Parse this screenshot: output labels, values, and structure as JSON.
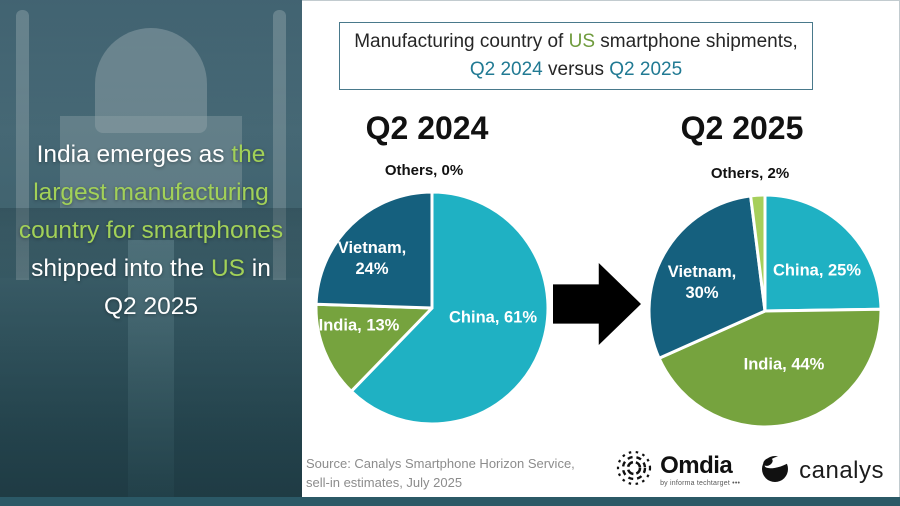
{
  "left_panel": {
    "headline_segments": [
      {
        "text": "India emerges as "
      },
      {
        "text": "the largest manufacturing country for smartphones"
      },
      {
        "text": " shipped into the "
      },
      {
        "text": "US"
      },
      {
        "text": " in Q2 2025"
      }
    ]
  },
  "header": {
    "line1": [
      {
        "text": "Manufacturing country of "
      },
      {
        "text": "US"
      },
      {
        "text": " smartphone shipments,"
      }
    ],
    "line2": [
      {
        "text": "Q2 2024"
      },
      {
        "text": " versus "
      },
      {
        "text": "Q2 2025"
      }
    ]
  },
  "chart_data": [
    {
      "type": "pie",
      "title": "Q2 2024",
      "legend_position": "inside",
      "slices": [
        {
          "name": "China",
          "value": 61,
          "label": "China, 61%",
          "color": "#1fb1c3"
        },
        {
          "name": "India",
          "value": 13,
          "label": "India, 13%",
          "color": "#76a33e"
        },
        {
          "name": "Vietnam",
          "value": 24,
          "label": "Vietnam, 24%",
          "color": "#15607e"
        },
        {
          "name": "Others",
          "value": 0,
          "label": "Others, 0%",
          "color": "#a6cf5b"
        }
      ]
    },
    {
      "type": "pie",
      "title": "Q2 2025",
      "legend_position": "inside",
      "slices": [
        {
          "name": "China",
          "value": 25,
          "label": "China, 25%",
          "color": "#1fb1c3"
        },
        {
          "name": "India",
          "value": 44,
          "label": "India, 44%",
          "color": "#76a33e"
        },
        {
          "name": "Vietnam",
          "value": 30,
          "label": "Vietnam, 30%",
          "color": "#15607e"
        },
        {
          "name": "Others",
          "value": 2,
          "label": "Others, 2%",
          "color": "#a6cf5b"
        }
      ]
    }
  ],
  "footer": {
    "source_line1": "Source: Canalys Smartphone Horizon Service,",
    "source_line2": "sell-in estimates, July 2025",
    "omdia_name": "Omdia",
    "omdia_tagline": "by informa techtarget •••",
    "canalys_name": "canalys"
  },
  "colors": {
    "china": "#1fb1c3",
    "india": "#76a33e",
    "vietnam": "#15607e",
    "others": "#a6cf5b",
    "accent_green": "#6f9b3d",
    "accent_teal": "#217a93",
    "headline_green": "#a2d158",
    "bottom_bar": "#2b5966"
  }
}
